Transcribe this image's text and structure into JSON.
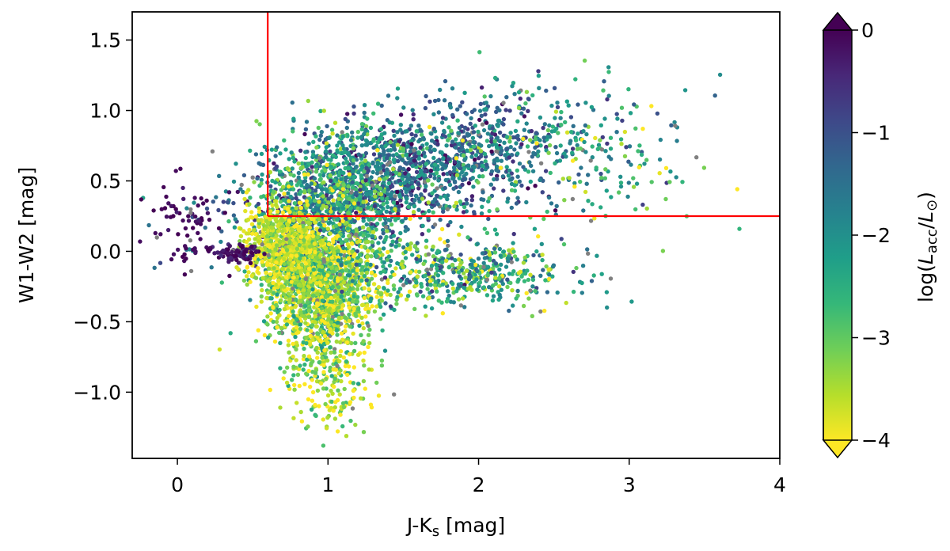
{
  "chart_data": {
    "type": "scatter",
    "xlabel": "J-K",
    "xlabel_sub": "s",
    "xlabel_unit": " [mag]",
    "ylabel": "W1-W2 [mag]",
    "xlim": [
      -0.3,
      4.0
    ],
    "ylim": [
      -1.47,
      1.7
    ],
    "x_ticks": [
      0,
      1,
      2,
      3,
      4
    ],
    "x_tick_labels": [
      "0",
      "1",
      "2",
      "3",
      "4"
    ],
    "y_ticks": [
      -1.0,
      -0.5,
      0.0,
      0.5,
      1.0,
      1.5
    ],
    "y_tick_labels": [
      "−1.0",
      "−0.5",
      "0.0",
      "0.5",
      "1.0",
      "1.5"
    ],
    "grid": false,
    "colormap": "viridis_r",
    "colorbar": {
      "label_prefix": "log(",
      "label_L": "L",
      "label_acc_sub": "acc",
      "label_slash": "/",
      "label_sun_sub": "⊙",
      "label_suffix": ")",
      "range": [
        -4,
        0
      ],
      "ticks": [
        0,
        -1,
        -2,
        -3,
        -4
      ],
      "tick_labels": [
        "0",
        "−1",
        "−2",
        "−3",
        "−4"
      ],
      "extend": "both",
      "colors": [
        "#fde725",
        "#b5de2b",
        "#6ece58",
        "#35b779",
        "#1f9e89",
        "#26828e",
        "#31688e",
        "#3e4989",
        "#482878",
        "#440154"
      ]
    },
    "selection_box": {
      "color": "#ff0000",
      "x_min": 0.6,
      "y_min": 0.25
    },
    "missing_value_color": "#808080",
    "clusters": [
      {
        "cx": 1.5,
        "cy": 0.55,
        "sx": 0.55,
        "sy": 0.22,
        "c": -1.5,
        "sc": 0.7,
        "n": 1500
      },
      {
        "cx": 1.05,
        "cy": 0.35,
        "sx": 0.25,
        "sy": 0.25,
        "c": -2.4,
        "sc": 0.7,
        "n": 900
      },
      {
        "cx": 0.95,
        "cy": -0.25,
        "sx": 0.18,
        "sy": 0.22,
        "c": -3.3,
        "sc": 0.6,
        "n": 1400
      },
      {
        "cx": 0.7,
        "cy": 0.05,
        "sx": 0.12,
        "sy": 0.15,
        "c": -3.7,
        "sc": 0.4,
        "n": 600
      },
      {
        "cx": 1.9,
        "cy": -0.15,
        "sx": 0.35,
        "sy": 0.12,
        "c": -2.5,
        "sc": 0.8,
        "n": 500
      },
      {
        "cx": 0.4,
        "cy": -0.02,
        "sx": 0.08,
        "sy": 0.03,
        "c": -0.2,
        "sc": 0.2,
        "n": 90
      },
      {
        "cx": 0.05,
        "cy": 0.2,
        "sx": 0.12,
        "sy": 0.15,
        "c": -0.1,
        "sc": 0.1,
        "n": 70
      },
      {
        "cx": 1.0,
        "cy": -0.85,
        "sx": 0.15,
        "sy": 0.2,
        "c": -3.5,
        "sc": 0.6,
        "n": 250
      },
      {
        "cx": 2.6,
        "cy": 0.7,
        "sx": 0.4,
        "sy": 0.25,
        "c": -2.5,
        "sc": 0.9,
        "n": 220
      }
    ]
  }
}
